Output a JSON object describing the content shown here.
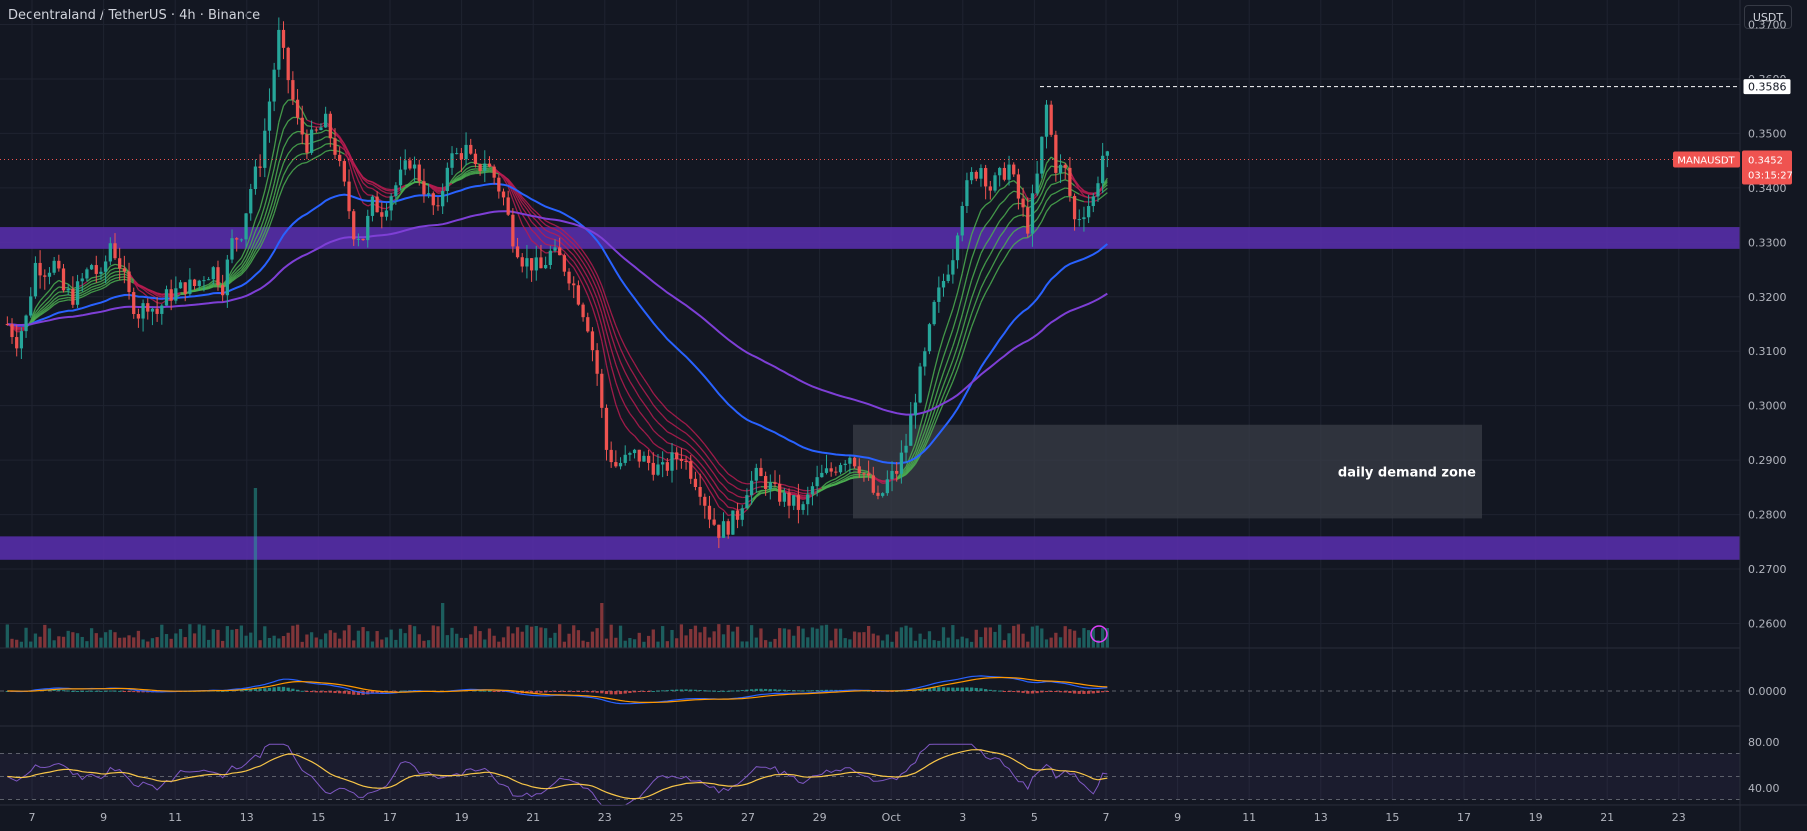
{
  "header": {
    "title": "Decentraland / TetherUS · 4h · Binance",
    "unit": "USDT"
  },
  "chart_data": {
    "type": "candlestick",
    "symbol_tag": "MANAUSDT",
    "last_price": "0.3452",
    "countdown": "03:15:27",
    "marked_high": "0.3586",
    "annotation": "daily demand zone",
    "ylim": [
      0.2555,
      0.3745
    ],
    "yticks": [
      "0.3700",
      "0.3600",
      "0.3500",
      "0.3400",
      "0.3300",
      "0.3200",
      "0.3100",
      "0.3000",
      "0.2900",
      "0.2800",
      "0.2700",
      "0.2600"
    ],
    "xticks": [
      "7",
      "9",
      "11",
      "13",
      "15",
      "17",
      "19",
      "21",
      "23",
      "25",
      "27",
      "29",
      "Oct",
      "3",
      "5",
      "7",
      "9",
      "11",
      "13",
      "15",
      "17",
      "19",
      "21",
      "23"
    ],
    "macd_ticks": [
      "0.0000"
    ],
    "rsi_ticks": [
      "80.00",
      "40.00"
    ],
    "zones": [
      {
        "name": "resistance-band",
        "low": 0.3288,
        "high": 0.3328,
        "color": "#5b2fb0"
      },
      {
        "name": "support-band",
        "low": 0.2717,
        "high": 0.276,
        "color": "#5b2fb0"
      },
      {
        "name": "demand-zone",
        "low": 0.2793,
        "high": 0.2965,
        "color": "#3a3d47",
        "start_day": "29.75",
        "end_day": "47.4"
      }
    ],
    "price_path": [
      [
        0,
        0.315
      ],
      [
        2,
        0.312
      ],
      [
        4,
        0.316
      ],
      [
        6,
        0.326
      ],
      [
        8,
        0.325
      ],
      [
        10,
        0.326
      ],
      [
        12,
        0.321
      ],
      [
        14,
        0.32
      ],
      [
        16,
        0.323
      ],
      [
        18,
        0.326
      ],
      [
        20,
        0.323
      ],
      [
        22,
        0.33
      ],
      [
        24,
        0.326
      ],
      [
        26,
        0.32
      ],
      [
        28,
        0.317
      ],
      [
        30,
        0.319
      ],
      [
        32,
        0.317
      ],
      [
        34,
        0.32
      ],
      [
        36,
        0.321
      ],
      [
        38,
        0.322
      ],
      [
        40,
        0.322
      ],
      [
        42,
        0.324
      ],
      [
        44,
        0.325
      ],
      [
        46,
        0.322
      ],
      [
        48,
        0.33
      ],
      [
        50,
        0.332
      ],
      [
        52,
        0.34
      ],
      [
        54,
        0.345
      ],
      [
        56,
        0.356
      ],
      [
        58,
        0.368
      ],
      [
        60,
        0.36
      ],
      [
        62,
        0.352
      ],
      [
        64,
        0.348
      ],
      [
        66,
        0.35
      ],
      [
        68,
        0.352
      ],
      [
        70,
        0.347
      ],
      [
        72,
        0.34
      ],
      [
        74,
        0.332
      ],
      [
        76,
        0.331
      ],
      [
        78,
        0.337
      ],
      [
        80,
        0.336
      ],
      [
        82,
        0.339
      ],
      [
        84,
        0.342
      ],
      [
        86,
        0.345
      ],
      [
        88,
        0.342
      ],
      [
        90,
        0.338
      ],
      [
        92,
        0.335
      ],
      [
        94,
        0.345
      ],
      [
        96,
        0.346
      ],
      [
        98,
        0.347
      ],
      [
        100,
        0.343
      ],
      [
        102,
        0.345
      ],
      [
        104,
        0.342
      ],
      [
        106,
        0.338
      ],
      [
        108,
        0.331
      ],
      [
        110,
        0.327
      ],
      [
        112,
        0.326
      ],
      [
        114,
        0.325
      ],
      [
        116,
        0.328
      ],
      [
        118,
        0.327
      ],
      [
        120,
        0.324
      ],
      [
        122,
        0.32
      ],
      [
        124,
        0.315
      ],
      [
        126,
        0.306
      ],
      [
        128,
        0.292
      ],
      [
        130,
        0.289
      ],
      [
        132,
        0.29
      ],
      [
        134,
        0.291
      ],
      [
        136,
        0.29
      ],
      [
        138,
        0.289
      ],
      [
        140,
        0.288
      ],
      [
        142,
        0.29
      ],
      [
        144,
        0.291
      ],
      [
        146,
        0.288
      ],
      [
        148,
        0.285
      ],
      [
        150,
        0.28
      ],
      [
        152,
        0.277
      ],
      [
        154,
        0.278
      ],
      [
        156,
        0.28
      ],
      [
        158,
        0.285
      ],
      [
        160,
        0.287
      ],
      [
        162,
        0.286
      ],
      [
        164,
        0.284
      ],
      [
        166,
        0.283
      ],
      [
        168,
        0.282
      ],
      [
        170,
        0.281
      ],
      [
        172,
        0.285
      ],
      [
        174,
        0.287
      ],
      [
        176,
        0.288
      ],
      [
        178,
        0.29
      ],
      [
        180,
        0.291
      ],
      [
        182,
        0.289
      ],
      [
        184,
        0.286
      ],
      [
        186,
        0.282
      ],
      [
        188,
        0.286
      ],
      [
        190,
        0.288
      ],
      [
        192,
        0.293
      ],
      [
        194,
        0.302
      ],
      [
        196,
        0.309
      ],
      [
        198,
        0.318
      ],
      [
        200,
        0.323
      ],
      [
        202,
        0.328
      ],
      [
        204,
        0.338
      ],
      [
        206,
        0.342
      ],
      [
        208,
        0.344
      ],
      [
        210,
        0.34
      ],
      [
        212,
        0.342
      ],
      [
        214,
        0.344
      ],
      [
        216,
        0.338
      ],
      [
        218,
        0.333
      ],
      [
        220,
        0.342
      ],
      [
        222,
        0.355
      ],
      [
        224,
        0.344
      ],
      [
        226,
        0.343
      ],
      [
        228,
        0.334
      ],
      [
        230,
        0.336
      ],
      [
        232,
        0.338
      ],
      [
        234,
        0.346
      ],
      [
        235,
        0.3452
      ]
    ],
    "colors": {
      "up": "#26a69a",
      "down": "#ef5350",
      "ma_blue": "#2962ff",
      "ma_purple": "#7e3fd6",
      "ribbon_green": "#4caf50",
      "ribbon_red": "#b71c50",
      "macd": "#2962ff",
      "signal": "#ff9800",
      "rsi": "#7e57c2",
      "rsi_ma": "#f7c548"
    }
  }
}
